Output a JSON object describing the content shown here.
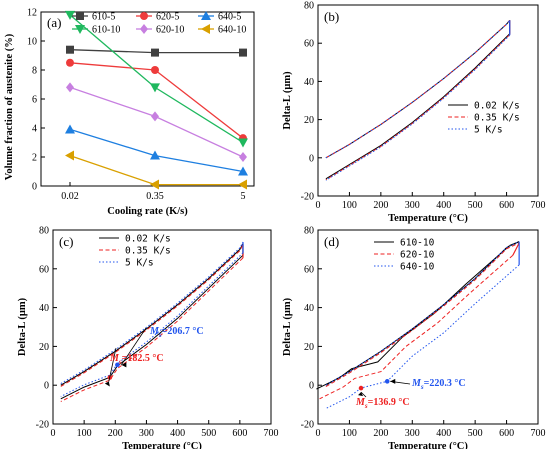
{
  "colors": {
    "c610_5": "#404040",
    "c620_5": "#ee3b3b",
    "c640_5": "#1e7fe0",
    "c610_10": "#1fb85e",
    "c620_10": "#c77fe0",
    "c640_10": "#d9a000",
    "black": "#000000",
    "red": "#ee2222",
    "blue": "#2255ee"
  },
  "chart_data": [
    {
      "panel": "(a)",
      "type": "line",
      "xlabel": "Cooling rate (K/s)",
      "ylabel": "Volume fraction of austenite (%)",
      "categories": [
        "0.02",
        "0.35",
        "5"
      ],
      "ylim": [
        0,
        12
      ],
      "yticks": [
        "0",
        "2",
        "4",
        "6",
        "8",
        "10",
        "12"
      ],
      "legend_position": "top",
      "series": [
        {
          "name": "610-5",
          "color": "#404040",
          "marker": "square",
          "values": [
            9.4,
            9.2,
            9.2
          ]
        },
        {
          "name": "620-5",
          "color": "#ee3b3b",
          "marker": "circle",
          "values": [
            8.5,
            8.0,
            3.3
          ]
        },
        {
          "name": "640-5",
          "color": "#1e7fe0",
          "marker": "triangle-up",
          "values": [
            3.9,
            2.1,
            1.0
          ]
        },
        {
          "name": "610-10",
          "color": "#1fb85e",
          "marker": "triangle-down",
          "values": [
            11.8,
            6.8,
            3.0
          ]
        },
        {
          "name": "620-10",
          "color": "#c77fe0",
          "marker": "diamond",
          "values": [
            6.8,
            4.8,
            2.0
          ]
        },
        {
          "name": "640-10",
          "color": "#d9a000",
          "marker": "triangle-left",
          "values": [
            2.1,
            0.1,
            0.1
          ]
        }
      ]
    },
    {
      "panel": "(b)",
      "type": "line",
      "xlabel": "Temperature (°C)",
      "ylabel": "Delta-L (μm)",
      "xlim": [
        0,
        700
      ],
      "ylim": [
        -20,
        80
      ],
      "xticks": [
        "0",
        "100",
        "200",
        "300",
        "400",
        "500",
        "600",
        "700"
      ],
      "yticks": [
        "-20",
        "0",
        "20",
        "40",
        "60",
        "80"
      ],
      "legend_position": "middle-right",
      "series": [
        {
          "name": "0.02 K/s",
          "color": "#000000",
          "dash": "solid"
        },
        {
          "name": "0.35 K/s",
          "color": "#ee2222",
          "dash": "dashed"
        },
        {
          "name": "5 K/s",
          "color": "#2255ee",
          "dash": "dotted"
        }
      ],
      "heating": [
        [
          25,
          0
        ],
        [
          100,
          7
        ],
        [
          200,
          17.5
        ],
        [
          300,
          29
        ],
        [
          400,
          41.5
        ],
        [
          500,
          55
        ],
        [
          600,
          70
        ],
        [
          610,
          72
        ]
      ],
      "cooling": [
        [
          610,
          65
        ],
        [
          500,
          47
        ],
        [
          400,
          32
        ],
        [
          300,
          18.5
        ],
        [
          200,
          6.5
        ],
        [
          100,
          -3.5
        ],
        [
          25,
          -11
        ]
      ]
    },
    {
      "panel": "(c)",
      "type": "line",
      "xlabel": "Temperature (°C)",
      "ylabel": "Delta-L (μm)",
      "xlim": [
        0,
        700
      ],
      "ylim": [
        -20,
        80
      ],
      "xticks": [
        "0",
        "100",
        "200",
        "300",
        "400",
        "500",
        "600",
        "700"
      ],
      "yticks": [
        "-20",
        "0",
        "20",
        "40",
        "60",
        "80"
      ],
      "legend_position": "top-center",
      "series": [
        {
          "name": "0.02 K/s",
          "color": "#000000",
          "dash": "solid"
        },
        {
          "name": "0.35 K/s",
          "color": "#ee2222",
          "dash": "dashed"
        },
        {
          "name": "5 K/s",
          "color": "#2255ee",
          "dash": "dotted"
        }
      ],
      "heating": [
        [
          25,
          0
        ],
        [
          100,
          7
        ],
        [
          200,
          17.5
        ],
        [
          300,
          29
        ],
        [
          400,
          41.5
        ],
        [
          500,
          55
        ],
        [
          600,
          70
        ],
        [
          610,
          73
        ]
      ],
      "cooling": [
        [
          610,
          67
        ],
        [
          500,
          50
        ],
        [
          400,
          34.5
        ],
        [
          300,
          21
        ],
        [
          206.7,
          10
        ],
        [
          182.5,
          4
        ],
        [
          100,
          -1
        ],
        [
          25,
          -7
        ]
      ],
      "annotations": [
        {
          "label": "Ms=206.7 °C",
          "x": 206.7,
          "y": 10.5,
          "color": "#2255ee"
        },
        {
          "label": "Ms=182.5 °C",
          "x": 182.5,
          "y": 4,
          "color": "#ee2222"
        }
      ]
    },
    {
      "panel": "(d)",
      "type": "line",
      "xlabel": "Temperature (°C)",
      "ylabel": "Delta-L (μm)",
      "xlim": [
        0,
        700
      ],
      "ylim": [
        -20,
        80
      ],
      "xticks": [
        "0",
        "100",
        "200",
        "300",
        "400",
        "500",
        "600",
        "700"
      ],
      "yticks": [
        "-20",
        "0",
        "20",
        "40",
        "60",
        "80"
      ],
      "legend_position": "top-center",
      "series": [
        {
          "name": "610-10",
          "color": "#000000",
          "dash": "solid"
        },
        {
          "name": "620-10",
          "color": "#ee2222",
          "dash": "dashed"
        },
        {
          "name": "640-10",
          "color": "#2255ee",
          "dash": "dotted"
        }
      ],
      "heating": [
        [
          25,
          0
        ],
        [
          100,
          7
        ],
        [
          200,
          17.5
        ],
        [
          300,
          29
        ],
        [
          400,
          41.5
        ],
        [
          500,
          55
        ],
        [
          600,
          71
        ],
        [
          640,
          74
        ]
      ],
      "cooling": [
        [
          640,
          62
        ],
        [
          500,
          42
        ],
        [
          400,
          27
        ],
        [
          300,
          15
        ],
        [
          220.3,
          2
        ],
        [
          136.9,
          -1.5
        ],
        [
          100,
          -6
        ],
        [
          25,
          -12
        ]
      ],
      "annotations": [
        {
          "label": "Ms=220.3 °C",
          "x": 220.3,
          "y": 2,
          "color": "#2255ee"
        },
        {
          "label": "Ms=136.9 °C",
          "x": 136.9,
          "y": -1.5,
          "color": "#ee2222"
        }
      ]
    }
  ],
  "texts": {
    "a_label": "(a)",
    "b_label": "(b)",
    "c_label": "(c)",
    "d_label": "(d)",
    "xlab_a": "Cooling rate (K/s)",
    "ylab_a": "Volume fraction of austenite (%)",
    "xlab_t": "Temperature (°C)",
    "ylab_d": "Delta-L (μm)",
    "ms_c_blue": "=206.7 °C",
    "ms_c_red": "=182.5 °C",
    "ms_d_blue": "=220.3 °C",
    "ms_d_red": "=136.9 °C",
    "ms": "M",
    "ms_sub": "s"
  }
}
